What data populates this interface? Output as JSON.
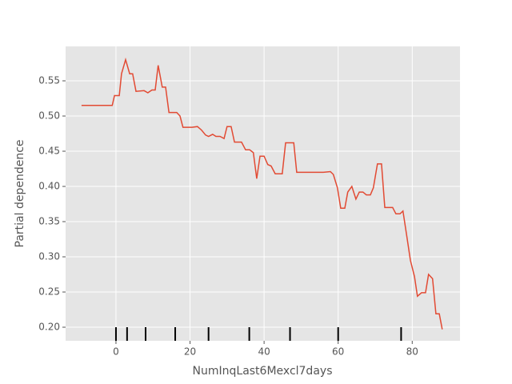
{
  "chart_data": {
    "type": "line",
    "xlabel": "NumInqLast6Mexcl7days",
    "ylabel": "Partial dependence",
    "x": [
      -9.3,
      -1,
      -0.4,
      0.9,
      1.5,
      2.6,
      3.7,
      4.5,
      5.4,
      7.6,
      8.6,
      9.7,
      10.6,
      11.4,
      12.5,
      13.4,
      14.3,
      16.4,
      17.3,
      18.1,
      20.5,
      22,
      23.1,
      24.2,
      25,
      26.1,
      27,
      28.1,
      29.2,
      30,
      31.1,
      32,
      33.9,
      35,
      36.1,
      37.1,
      38,
      38.9,
      40,
      41,
      41.9,
      43,
      44.9,
      45.8,
      48,
      48.8,
      53,
      56,
      57.9,
      58.7,
      59.8,
      60.7,
      61.8,
      62.6,
      63.7,
      64.8,
      65.7,
      66.7,
      67.6,
      68.7,
      69.5,
      70.6,
      71.7,
      72.6,
      74.7,
      75.6,
      76.7,
      77.5,
      78.6,
      79.5,
      80.6,
      81.4,
      82.5,
      83.6,
      84.4,
      85.5,
      86.4,
      87.3,
      88.1
    ],
    "series": [
      {
        "color": "#e24a33",
        "values": [
          0.515,
          0.515,
          0.529,
          0.529,
          0.56,
          0.58,
          0.56,
          0.56,
          0.535,
          0.536,
          0.533,
          0.537,
          0.537,
          0.572,
          0.541,
          0.541,
          0.505,
          0.505,
          0.5,
          0.484,
          0.484,
          0.485,
          0.48,
          0.473,
          0.471,
          0.474,
          0.471,
          0.471,
          0.468,
          0.485,
          0.485,
          0.463,
          0.463,
          0.452,
          0.452,
          0.448,
          0.411,
          0.443,
          0.443,
          0.431,
          0.429,
          0.418,
          0.418,
          0.462,
          0.462,
          0.42,
          0.42,
          0.42,
          0.421,
          0.417,
          0.398,
          0.369,
          0.369,
          0.392,
          0.4,
          0.382,
          0.392,
          0.392,
          0.388,
          0.388,
          0.398,
          0.432,
          0.432,
          0.37,
          0.37,
          0.361,
          0.361,
          0.365,
          0.327,
          0.295,
          0.272,
          0.244,
          0.249,
          0.249,
          0.275,
          0.269,
          0.219,
          0.219,
          0.197
        ]
      }
    ],
    "rug": [
      0,
      3,
      8,
      16,
      25,
      36,
      47,
      60,
      77
    ],
    "xlim": [
      -13.6,
      92.9
    ],
    "ylim": [
      0.1807,
      0.5989
    ],
    "xticks": [
      0,
      20,
      40,
      60,
      80
    ],
    "yticks": [
      {
        "value": 0.2,
        "label": "0.20"
      },
      0.25,
      {
        "value": 0.3,
        "label": "0.30"
      },
      0.35,
      {
        "value": 0.4,
        "label": "0.40"
      },
      0.45,
      {
        "value": 0.5,
        "label": "0.50"
      },
      0.55
    ],
    "grid": true
  }
}
